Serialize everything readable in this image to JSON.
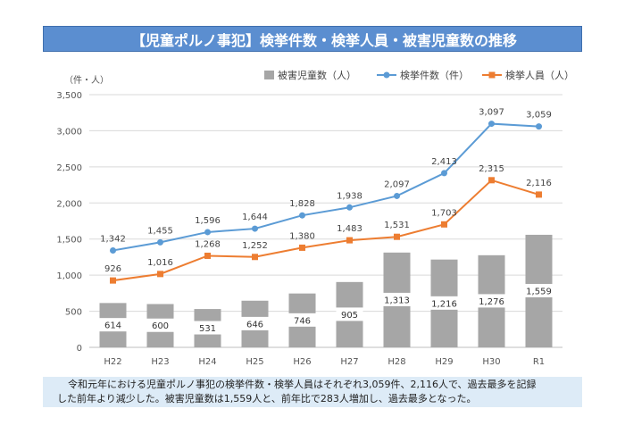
{
  "title": "【児童ポルノ事犯】検挙件数・検挙人員・被害児童数の推移",
  "caption": {
    "line1": "令和元年における児童ポルノ事犯の検挙件数・検挙人員はそれぞれ3,059件、2,116人で、過去最多を記録",
    "line2": "した前年より減少した。被害児童数は1,559人と、前年比で283人増加し、過去最多となった。"
  },
  "colors": {
    "title_bg": "#5b8ed0",
    "bar": "#a6a6a6",
    "cases": "#5b9bd5",
    "persons": "#ed7d31",
    "caption_bg": "#ddebf7",
    "grid": "#d9d9d9"
  },
  "chart_data": {
    "type": "bar+line",
    "unit_label": "（件・人）",
    "categories": [
      "H22",
      "H23",
      "H24",
      "H25",
      "H26",
      "H27",
      "H28",
      "H29",
      "H30",
      "R1"
    ],
    "ylim": [
      0,
      3500
    ],
    "yticks": [
      "0",
      "500",
      "1,000",
      "1,500",
      "2,000",
      "2,500",
      "3,000",
      "3,500"
    ],
    "ytick_values": [
      0,
      500,
      1000,
      1500,
      2000,
      2500,
      3000,
      3500
    ],
    "grid": true,
    "legend_position": "top-right",
    "series": [
      {
        "name": "被害児童数（人）",
        "type": "bar",
        "values": [
          614,
          600,
          531,
          646,
          746,
          905,
          1313,
          1216,
          1276,
          1559
        ],
        "labels": [
          "614",
          "600",
          "531",
          "646",
          "746",
          "905",
          "1,313",
          "1,216",
          "1,276",
          "1,559"
        ]
      },
      {
        "name": "検挙件数（件）",
        "type": "line",
        "values": [
          1342,
          1455,
          1596,
          1644,
          1828,
          1938,
          2097,
          2413,
          3097,
          3059
        ],
        "labels": [
          "1,342",
          "1,455",
          "1,596",
          "1,644",
          "1,828",
          "1,938",
          "2,097",
          "2,413",
          "3,097",
          "3,059"
        ]
      },
      {
        "name": "検挙人員（人）",
        "type": "line",
        "values": [
          926,
          1016,
          1268,
          1252,
          1380,
          1483,
          1531,
          1703,
          2315,
          2116
        ],
        "labels": [
          "926",
          "1,016",
          "1,268",
          "1,252",
          "1,380",
          "1,483",
          "1,531",
          "1,703",
          "2,315",
          "2,116"
        ]
      }
    ]
  }
}
